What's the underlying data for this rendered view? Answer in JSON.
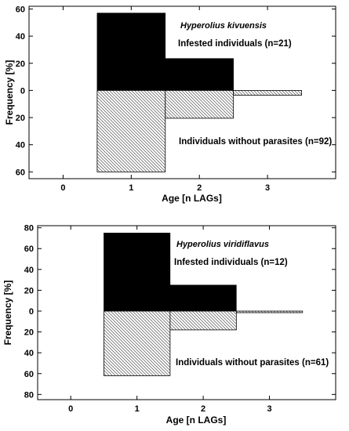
{
  "chart_data": [
    {
      "type": "bar",
      "subtype": "mirrored-histogram",
      "species": "Hyperolius kivuensis",
      "xlabel": "Age [n LAGs]",
      "ylabel": "Frequency [%]",
      "xlim": [
        -0.5,
        4.0
      ],
      "ylim": [
        -65,
        62
      ],
      "x_ticks": [
        0,
        1,
        2,
        3
      ],
      "y_ticks": [
        60,
        40,
        20,
        0,
        -20,
        -40,
        -60
      ],
      "y_tick_labels": [
        "60",
        "40",
        "20",
        "0",
        "20",
        "40",
        "60"
      ],
      "bins": [
        1,
        2,
        3
      ],
      "series": [
        {
          "name": "Infested individuals (n=21)",
          "direction": "up",
          "fill": "solid",
          "values": [
            57,
            23.5,
            0
          ]
        },
        {
          "name": "Individuals without parasites (n=92)",
          "direction": "down",
          "fill": "hatched",
          "values": [
            60,
            20.5,
            3.5
          ]
        }
      ]
    },
    {
      "type": "bar",
      "subtype": "mirrored-histogram",
      "species": "Hyperolius viridiflavus",
      "xlabel": "Age [n LAGs]",
      "ylabel": "Frequency [%]",
      "xlim": [
        -0.5,
        4.0
      ],
      "ylim": [
        -85,
        82
      ],
      "x_ticks": [
        0,
        1,
        2,
        3
      ],
      "y_ticks": [
        80,
        60,
        40,
        20,
        0,
        -20,
        -40,
        -60,
        -80
      ],
      "y_tick_labels": [
        "80",
        "60",
        "40",
        "20",
        "0",
        "20",
        "40",
        "60",
        "80"
      ],
      "bins": [
        1,
        2,
        3
      ],
      "series": [
        {
          "name": "Infested individuals (n=12)",
          "direction": "up",
          "fill": "solid",
          "values": [
            75,
            25,
            0
          ]
        },
        {
          "name": "Individuals without parasites (n=61)",
          "direction": "down",
          "fill": "hatched",
          "values": [
            62,
            18,
            1.5
          ]
        }
      ]
    }
  ],
  "colors": {
    "solid": "#000000",
    "hatch": "#555555",
    "frame": "#000000"
  }
}
